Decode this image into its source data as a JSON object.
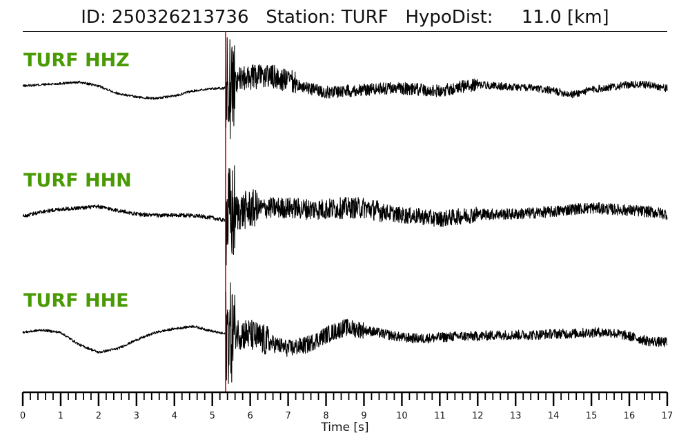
{
  "header": {
    "title": "ID: 250326213736   Station: TURF   HypoDist:     11.0 [km]"
  },
  "chart_data": {
    "type": "line",
    "xlabel": "Time [s]",
    "xlim": [
      0,
      17
    ],
    "xticks": [
      0,
      1,
      2,
      3,
      4,
      5,
      6,
      7,
      8,
      9,
      10,
      11,
      12,
      13,
      14,
      15,
      16,
      17
    ],
    "minor_tick_step": 0.2,
    "pick_time": 5.35,
    "pick_color": "#e00000",
    "label_color": "#4a9a06",
    "trace_color": "#000000",
    "series": [
      {
        "name": "TURF HHZ",
        "noise": 0.05,
        "points": [
          [
            0,
            0.1
          ],
          [
            0.5,
            0.15
          ],
          [
            1.0,
            0.2
          ],
          [
            1.5,
            0.25
          ],
          [
            2.0,
            0.1
          ],
          [
            2.5,
            -0.2
          ],
          [
            3.0,
            -0.35
          ],
          [
            3.5,
            -0.4
          ],
          [
            4.0,
            -0.3
          ],
          [
            4.5,
            -0.1
          ],
          [
            5.0,
            0.0
          ],
          [
            5.3,
            0.0
          ],
          [
            5.6,
            0.3
          ],
          [
            6.0,
            0.45
          ],
          [
            6.5,
            0.5
          ],
          [
            7.0,
            0.3
          ],
          [
            7.5,
            0.0
          ],
          [
            8.0,
            -0.15
          ],
          [
            8.5,
            -0.1
          ],
          [
            9.0,
            -0.05
          ],
          [
            9.5,
            0.0
          ],
          [
            10.0,
            0.0
          ],
          [
            10.5,
            -0.05
          ],
          [
            11.0,
            -0.1
          ],
          [
            11.5,
            0.05
          ],
          [
            12.0,
            0.15
          ],
          [
            12.5,
            0.1
          ],
          [
            13.0,
            0.05
          ],
          [
            13.5,
            0.0
          ],
          [
            14.0,
            -0.1
          ],
          [
            14.5,
            -0.25
          ],
          [
            15.0,
            -0.05
          ],
          [
            15.5,
            0.05
          ],
          [
            16.0,
            0.15
          ],
          [
            16.5,
            0.15
          ],
          [
            17.0,
            0.0
          ]
        ],
        "bursts": [
          [
            5.35,
            5.6,
            2.2
          ],
          [
            5.6,
            7.2,
            0.45
          ],
          [
            7.2,
            12.0,
            0.2
          ],
          [
            12.0,
            17.0,
            0.1
          ]
        ]
      },
      {
        "name": "TURF HHN",
        "noise": 0.08,
        "points": [
          [
            0,
            -0.1
          ],
          [
            0.5,
            0.1
          ],
          [
            1.0,
            0.2
          ],
          [
            1.5,
            0.25
          ],
          [
            2.0,
            0.3
          ],
          [
            2.5,
            0.15
          ],
          [
            3.0,
            0.0
          ],
          [
            3.5,
            -0.05
          ],
          [
            4.0,
            -0.05
          ],
          [
            4.5,
            -0.05
          ],
          [
            5.0,
            -0.15
          ],
          [
            5.3,
            -0.25
          ],
          [
            5.6,
            0.05
          ],
          [
            6.0,
            0.2
          ],
          [
            6.5,
            0.25
          ],
          [
            7.0,
            0.25
          ],
          [
            7.5,
            0.2
          ],
          [
            8.0,
            0.2
          ],
          [
            8.5,
            0.25
          ],
          [
            9.0,
            0.25
          ],
          [
            9.5,
            0.1
          ],
          [
            10.0,
            -0.05
          ],
          [
            10.5,
            -0.1
          ],
          [
            11.0,
            -0.2
          ],
          [
            11.5,
            -0.1
          ],
          [
            12.0,
            0.0
          ],
          [
            12.5,
            0.0
          ],
          [
            13.0,
            0.0
          ],
          [
            13.5,
            0.05
          ],
          [
            14.0,
            0.1
          ],
          [
            14.5,
            0.2
          ],
          [
            15.0,
            0.25
          ],
          [
            15.5,
            0.2
          ],
          [
            16.0,
            0.15
          ],
          [
            16.5,
            0.1
          ],
          [
            17.0,
            0.0
          ]
        ],
        "bursts": [
          [
            5.35,
            5.6,
            2.0
          ],
          [
            5.6,
            6.2,
            0.7
          ],
          [
            6.2,
            9.5,
            0.35
          ],
          [
            9.5,
            12.0,
            0.25
          ],
          [
            12.0,
            17.0,
            0.15
          ]
        ]
      },
      {
        "name": "TURF HHE",
        "noise": 0.05,
        "points": [
          [
            0,
            0.1
          ],
          [
            0.5,
            0.2
          ],
          [
            1.0,
            0.1
          ],
          [
            1.5,
            -0.4
          ],
          [
            2.0,
            -0.7
          ],
          [
            2.5,
            -0.55
          ],
          [
            3.0,
            -0.2
          ],
          [
            3.5,
            0.1
          ],
          [
            4.0,
            0.25
          ],
          [
            4.5,
            0.35
          ],
          [
            5.0,
            0.15
          ],
          [
            5.3,
            0.05
          ],
          [
            5.6,
            0.1
          ],
          [
            6.0,
            0.0
          ],
          [
            6.5,
            -0.3
          ],
          [
            7.0,
            -0.55
          ],
          [
            7.5,
            -0.4
          ],
          [
            8.0,
            0.0
          ],
          [
            8.5,
            0.3
          ],
          [
            9.0,
            0.2
          ],
          [
            9.5,
            0.05
          ],
          [
            10.0,
            -0.1
          ],
          [
            10.5,
            -0.15
          ],
          [
            11.0,
            -0.1
          ],
          [
            11.5,
            -0.05
          ],
          [
            12.0,
            -0.05
          ],
          [
            12.5,
            0.0
          ],
          [
            13.0,
            0.0
          ],
          [
            13.5,
            0.0
          ],
          [
            14.0,
            0.05
          ],
          [
            14.5,
            0.05
          ],
          [
            15.0,
            0.1
          ],
          [
            15.5,
            0.1
          ],
          [
            16.0,
            -0.05
          ],
          [
            16.5,
            -0.25
          ],
          [
            17.0,
            -0.3
          ]
        ],
        "bursts": [
          [
            5.35,
            5.6,
            2.0
          ],
          [
            5.6,
            6.5,
            0.6
          ],
          [
            6.5,
            9.0,
            0.3
          ],
          [
            9.0,
            17.0,
            0.15
          ]
        ]
      }
    ]
  }
}
